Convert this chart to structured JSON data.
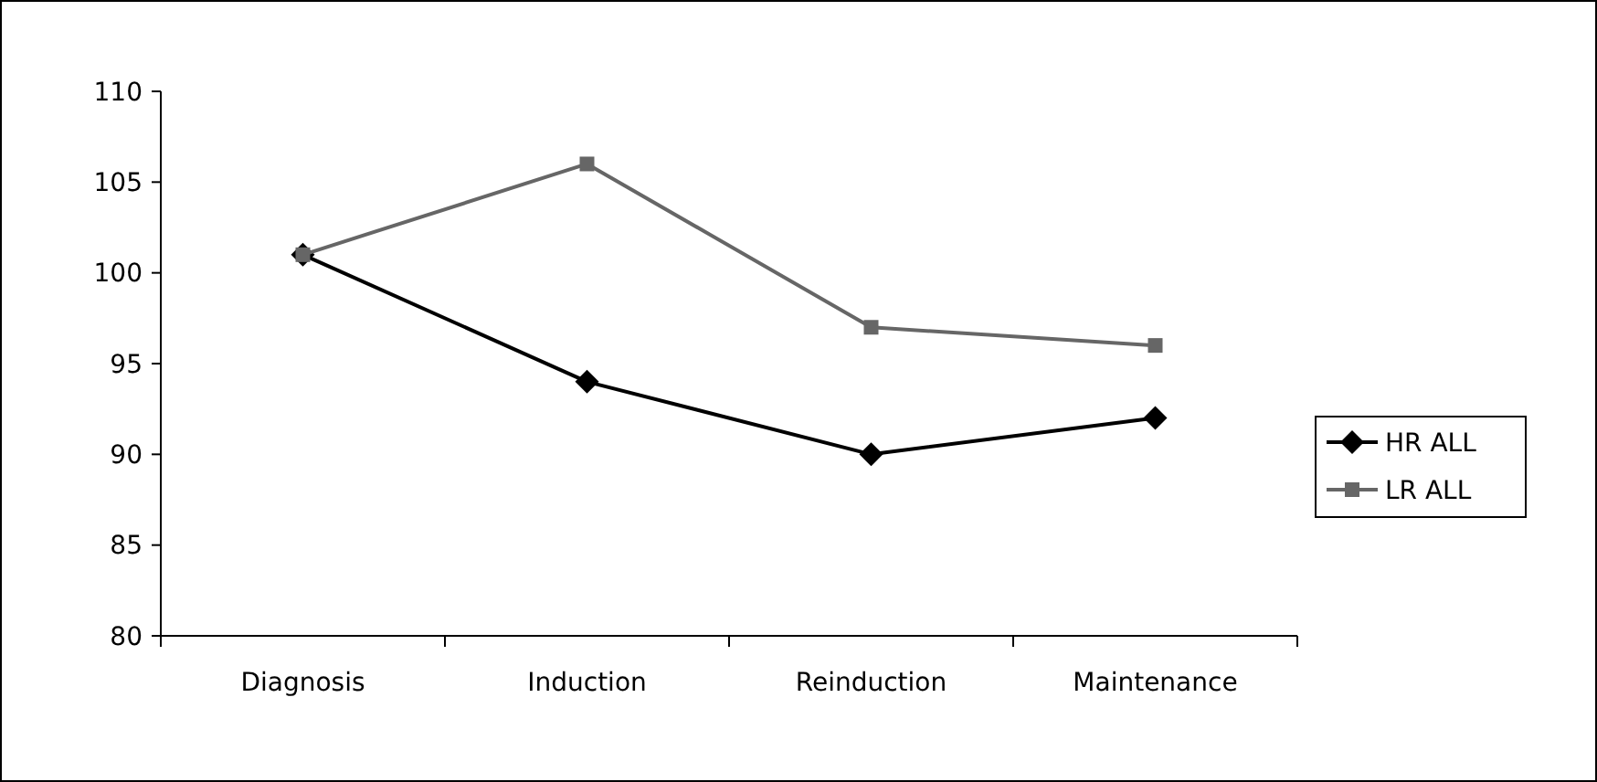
{
  "chart_data": {
    "type": "line",
    "categories": [
      "Diagnosis",
      "Induction",
      "Reinduction",
      "Maintenance"
    ],
    "series": [
      {
        "name": "HR ALL",
        "color": "#000000",
        "marker": "diamond",
        "values": [
          101,
          94,
          90,
          92
        ]
      },
      {
        "name": "LR ALL",
        "color": "#666666",
        "marker": "square",
        "values": [
          101,
          106,
          97,
          96
        ]
      }
    ],
    "ylim": [
      80,
      110
    ],
    "yticks": [
      80,
      85,
      90,
      95,
      100,
      105,
      110
    ],
    "grid": false,
    "legend": "right",
    "line_style": "solid"
  }
}
